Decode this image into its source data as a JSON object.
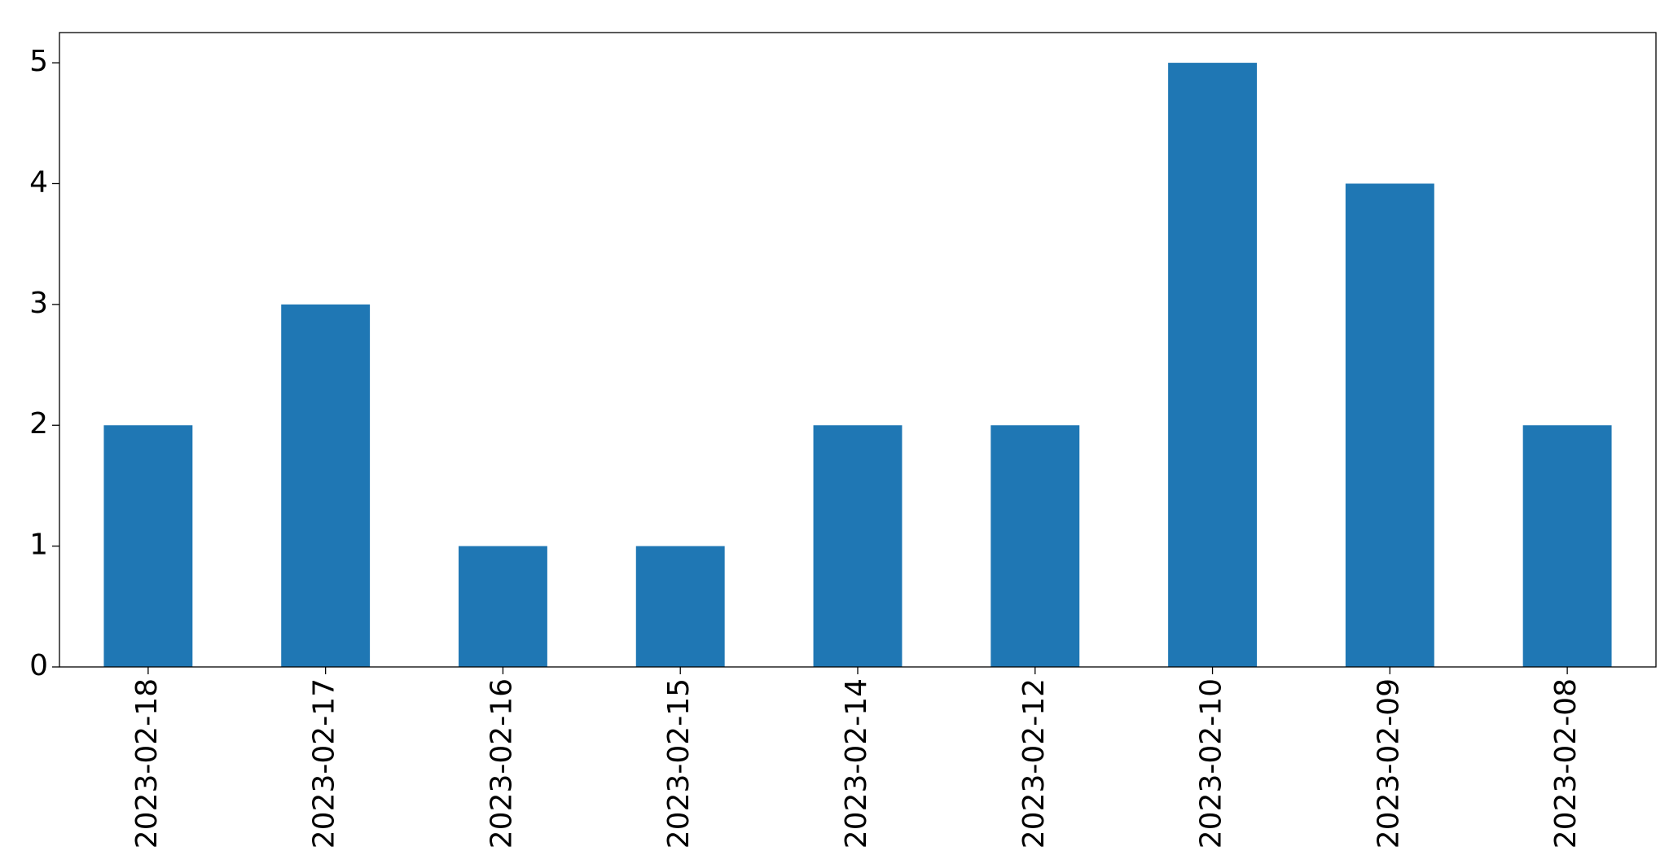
{
  "chart_data": {
    "type": "bar",
    "categories": [
      "2023-02-18",
      "2023-02-17",
      "2023-02-16",
      "2023-02-15",
      "2023-02-14",
      "2023-02-12",
      "2023-02-10",
      "2023-02-09",
      "2023-02-08"
    ],
    "values": [
      2,
      3,
      1,
      1,
      2,
      2,
      5,
      4,
      2
    ],
    "color": "#1f77b4",
    "ylim": [
      0,
      5.25
    ],
    "yticks": [
      0,
      1,
      2,
      3,
      4,
      5
    ],
    "grid": false
  }
}
